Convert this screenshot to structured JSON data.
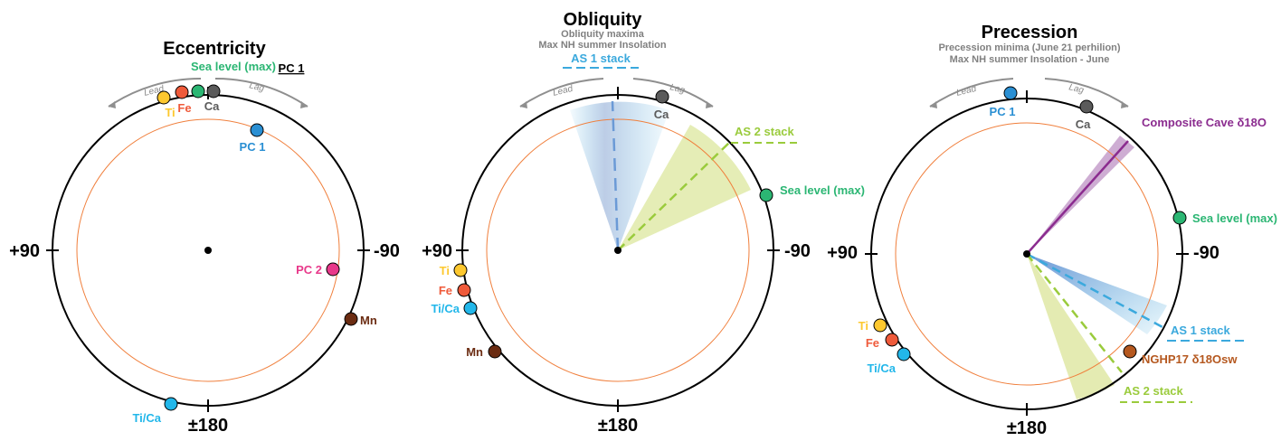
{
  "colors": {
    "ring": "#000000",
    "inner_ring": "#f07f3c",
    "arrow": "#8f8f8f",
    "sea_level": "#2bb673",
    "ti": "#fdc82f",
    "fe": "#ef5a3a",
    "ca": "#5b5b5b",
    "ti_ca": "#22b7ea",
    "pc1": "#2a8fd3",
    "pc2": "#e8388a",
    "mn": "#6b2c12",
    "as1": "#3ba9dd",
    "as2": "#9acb3c",
    "cave": "#8b2c8f",
    "nghp": "#b5581f"
  },
  "axes": {
    "left": "+90",
    "right": "-90",
    "bottom": "±180"
  },
  "direction": {
    "lead": "Lead",
    "lag": "Lag"
  },
  "panels": [
    {
      "title": "Eccentricity",
      "subtitle": [],
      "points": [
        {
          "name": "Ti",
          "angle": 22,
          "color": "ti",
          "label": "Ti"
        },
        {
          "name": "Fe",
          "angle": 16,
          "color": "fe",
          "label": "Fe"
        },
        {
          "name": "Sea level (max)",
          "angle": 5,
          "color": "sea_level",
          "label": "Sea level (max)"
        },
        {
          "name": "Ca",
          "angle": -2,
          "color": "ca",
          "label": "Ca"
        },
        {
          "name": "PC 1",
          "angle": -22,
          "color": "pc1",
          "label": "PC 1"
        },
        {
          "name": "PC 2",
          "angle": -100,
          "color": "pc2",
          "label": "PC 2"
        },
        {
          "name": "Mn",
          "angle": -120,
          "color": "mn",
          "label": "Mn"
        },
        {
          "name": "Ti/Ca",
          "angle": 168,
          "color": "ti_ca",
          "label": "Ti/Ca"
        }
      ],
      "pc_header": "PC 1"
    },
    {
      "title": "Obliquity",
      "subtitle": [
        "Obliquity maxima",
        "Max NH summer Insolation"
      ],
      "stack_header": "AS 1 stack",
      "points": [
        {
          "name": "Ca",
          "angle": -19,
          "color": "ca",
          "label": "Ca"
        },
        {
          "name": "Sea level (max)",
          "angle": -66,
          "color": "sea_level",
          "label": "Sea level\n(max)"
        },
        {
          "name": "Ti",
          "angle": 99,
          "color": "ti",
          "label": "Ti"
        },
        {
          "name": "Fe",
          "angle": 105,
          "color": "fe",
          "label": "Fe"
        },
        {
          "name": "Ti/Ca",
          "angle": 112,
          "color": "ti_ca",
          "label": "Ti/Ca"
        },
        {
          "name": "Mn",
          "angle": 136,
          "color": "mn",
          "label": "Mn"
        }
      ],
      "stacks": [
        {
          "name": "AS 1 stack",
          "angle": 2,
          "spread_from": -5,
          "spread_to": 20,
          "color": "as1"
        },
        {
          "name": "AS 2 stack",
          "angle": -45,
          "spread_from": -33,
          "spread_to": -68,
          "color": "as2",
          "label": "AS 2 stack"
        }
      ]
    },
    {
      "title": "Precession",
      "subtitle": [
        "Precession minima (June 21 perhilion)",
        "Max NH summer Insolation - June"
      ],
      "points": [
        {
          "name": "PC 1",
          "angle": 7,
          "color": "pc1",
          "label": "PC 1"
        },
        {
          "name": "Ca",
          "angle": -26,
          "color": "ca",
          "label": "Ca"
        },
        {
          "name": "Sea level (max)",
          "angle": -73,
          "color": "sea_level",
          "label": "Sea level\n(max)"
        },
        {
          "name": "NGHP17 δ18Osw",
          "angle": -136,
          "color": "nghp",
          "label": "NGHP17 δ18Osw"
        },
        {
          "name": "Ti",
          "angle": 122,
          "color": "ti",
          "label": "Ti"
        },
        {
          "name": "Fe",
          "angle": 126,
          "color": "fe",
          "label": "Fe"
        },
        {
          "name": "Ti/Ca",
          "angle": 131,
          "color": "ti_ca",
          "label": "Ti/Ca"
        }
      ],
      "stacks": [
        {
          "name": "Composite Cave δ18O",
          "angle": -42,
          "spread_from": -39,
          "spread_to": -45,
          "color": "cave",
          "label": "Composite\nCave δ18O"
        },
        {
          "name": "AS 1 stack",
          "angle": -118,
          "spread_from": -108,
          "spread_to": -124,
          "color": "as1",
          "label": "AS 1 stack"
        },
        {
          "name": "AS 2 stack",
          "angle": -145,
          "spread_from": -118,
          "spread_to": -160,
          "color": "as2",
          "label": "AS 2 stack"
        }
      ]
    }
  ]
}
